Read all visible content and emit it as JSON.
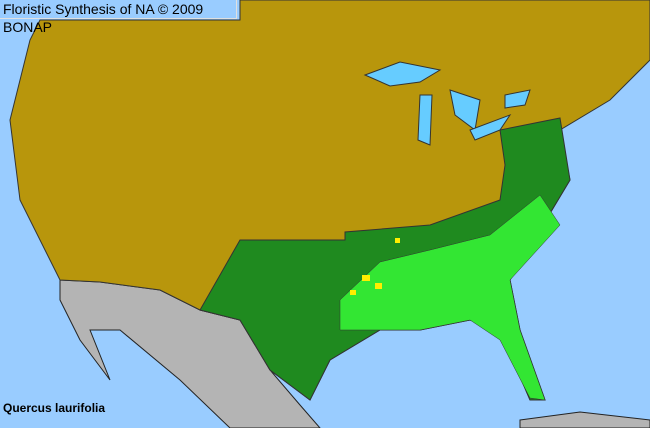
{
  "header": {
    "title": "Floristic Synthesis of NA © 2009 BONAP"
  },
  "species": {
    "name": "Quercus laurifolia"
  },
  "colors": {
    "ocean": "#99ccff",
    "not_present": "#b8960c",
    "present_state": "#1f8a1f",
    "present_county": "#33e633",
    "rare_or_adventive": "#ffee00",
    "outside_range": "#b4b4b4"
  }
}
